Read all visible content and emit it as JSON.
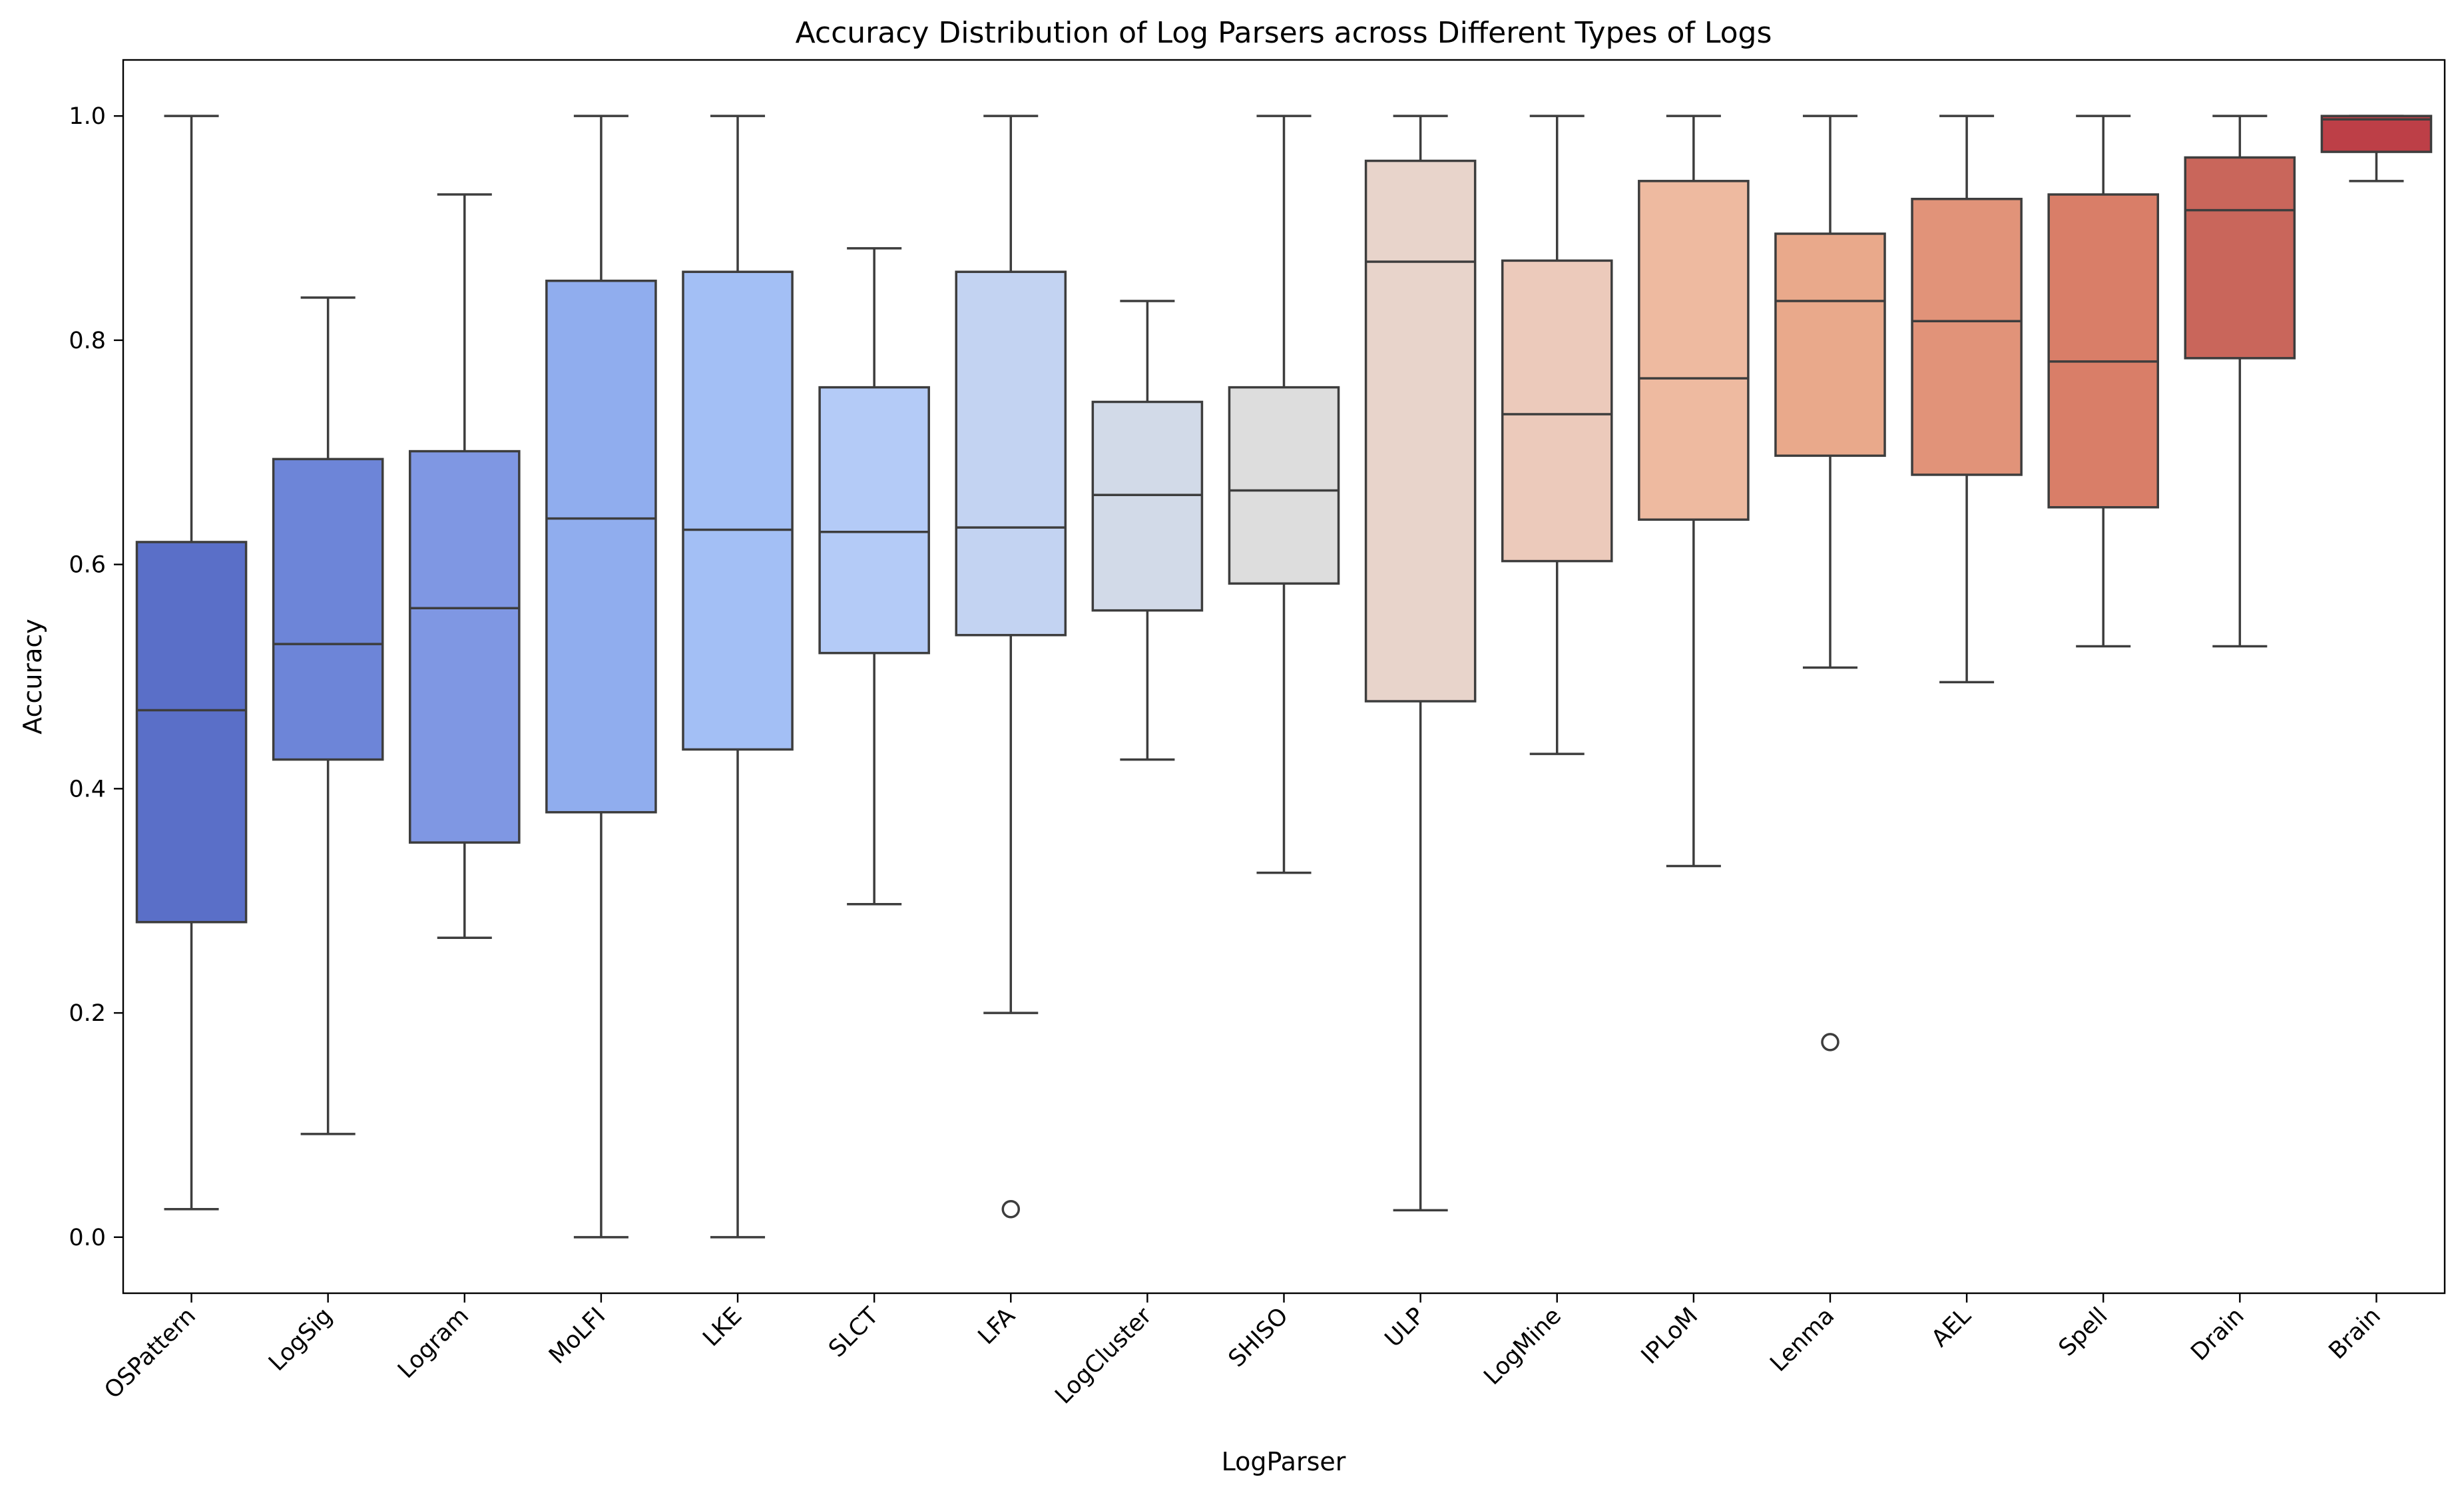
{
  "chart_data": {
    "type": "box",
    "title": "Accuracy Distribution of Log Parsers across Different Types of Logs",
    "xlabel": "LogParser",
    "ylabel": "Accuracy",
    "ylim": [
      -0.05,
      1.05
    ],
    "yticks": [
      0.0,
      0.2,
      0.4,
      0.6,
      0.8,
      1.0
    ],
    "ytick_labels": [
      "0.0",
      "0.2",
      "0.4",
      "0.6",
      "0.8",
      "1.0"
    ],
    "grid": false,
    "legend": "none",
    "categories": [
      "OSPattern",
      "LogSig",
      "Logram",
      "MoLFI",
      "LKE",
      "SLCT",
      "LFA",
      "LogCluster",
      "SHISO",
      "ULP",
      "LogMine",
      "IPLoM",
      "Lenma",
      "AEL",
      "Spell",
      "Drain",
      "Brain"
    ],
    "boxes": [
      {
        "whisker_low": 0.025,
        "q1": 0.281,
        "median": 0.47,
        "q3": 0.62,
        "whisker_high": 1.0,
        "fliers": []
      },
      {
        "whisker_low": 0.092,
        "q1": 0.426,
        "median": 0.529,
        "q3": 0.694,
        "whisker_high": 0.838,
        "fliers": []
      },
      {
        "whisker_low": 0.267,
        "q1": 0.352,
        "median": 0.561,
        "q3": 0.701,
        "whisker_high": 0.93,
        "fliers": []
      },
      {
        "whisker_low": 0.0,
        "q1": 0.379,
        "median": 0.641,
        "q3": 0.853,
        "whisker_high": 1.0,
        "fliers": []
      },
      {
        "whisker_low": 0.0,
        "q1": 0.435,
        "median": 0.631,
        "q3": 0.861,
        "whisker_high": 1.0,
        "fliers": []
      },
      {
        "whisker_low": 0.297,
        "q1": 0.521,
        "median": 0.629,
        "q3": 0.758,
        "whisker_high": 0.882,
        "fliers": []
      },
      {
        "whisker_low": 0.2,
        "q1": 0.537,
        "median": 0.633,
        "q3": 0.861,
        "whisker_high": 1.0,
        "fliers": [
          0.025
        ]
      },
      {
        "whisker_low": 0.426,
        "q1": 0.559,
        "median": 0.662,
        "q3": 0.745,
        "whisker_high": 0.835,
        "fliers": []
      },
      {
        "whisker_low": 0.325,
        "q1": 0.583,
        "median": 0.666,
        "q3": 0.758,
        "whisker_high": 1.0,
        "fliers": []
      },
      {
        "whisker_low": 0.024,
        "q1": 0.478,
        "median": 0.87,
        "q3": 0.96,
        "whisker_high": 1.0,
        "fliers": []
      },
      {
        "whisker_low": 0.431,
        "q1": 0.603,
        "median": 0.734,
        "q3": 0.871,
        "whisker_high": 1.0,
        "fliers": []
      },
      {
        "whisker_low": 0.331,
        "q1": 0.64,
        "median": 0.766,
        "q3": 0.942,
        "whisker_high": 1.0,
        "fliers": []
      },
      {
        "whisker_low": 0.508,
        "q1": 0.697,
        "median": 0.835,
        "q3": 0.895,
        "whisker_high": 1.0,
        "fliers": [
          0.174
        ]
      },
      {
        "whisker_low": 0.495,
        "q1": 0.68,
        "median": 0.817,
        "q3": 0.926,
        "whisker_high": 1.0,
        "fliers": []
      },
      {
        "whisker_low": 0.527,
        "q1": 0.651,
        "median": 0.781,
        "q3": 0.93,
        "whisker_high": 1.0,
        "fliers": []
      },
      {
        "whisker_low": 0.527,
        "q1": 0.784,
        "median": 0.916,
        "q3": 0.963,
        "whisker_high": 1.0,
        "fliers": []
      },
      {
        "whisker_low": 0.942,
        "q1": 0.968,
        "median": 0.997,
        "q3": 1.0,
        "whisker_high": 1.0,
        "fliers": []
      }
    ],
    "colors": [
      "#5a6fc8",
      "#6d85d8",
      "#7f97e3",
      "#90adee",
      "#a3bff5",
      "#b4cbf7",
      "#c3d3f2",
      "#d2dae8",
      "#dddddd",
      "#e8d4cb",
      "#eccabb",
      "#eebaa0",
      "#e9a98b",
      "#e19379",
      "#d97e68",
      "#c9665b",
      "#bd3f47"
    ]
  }
}
